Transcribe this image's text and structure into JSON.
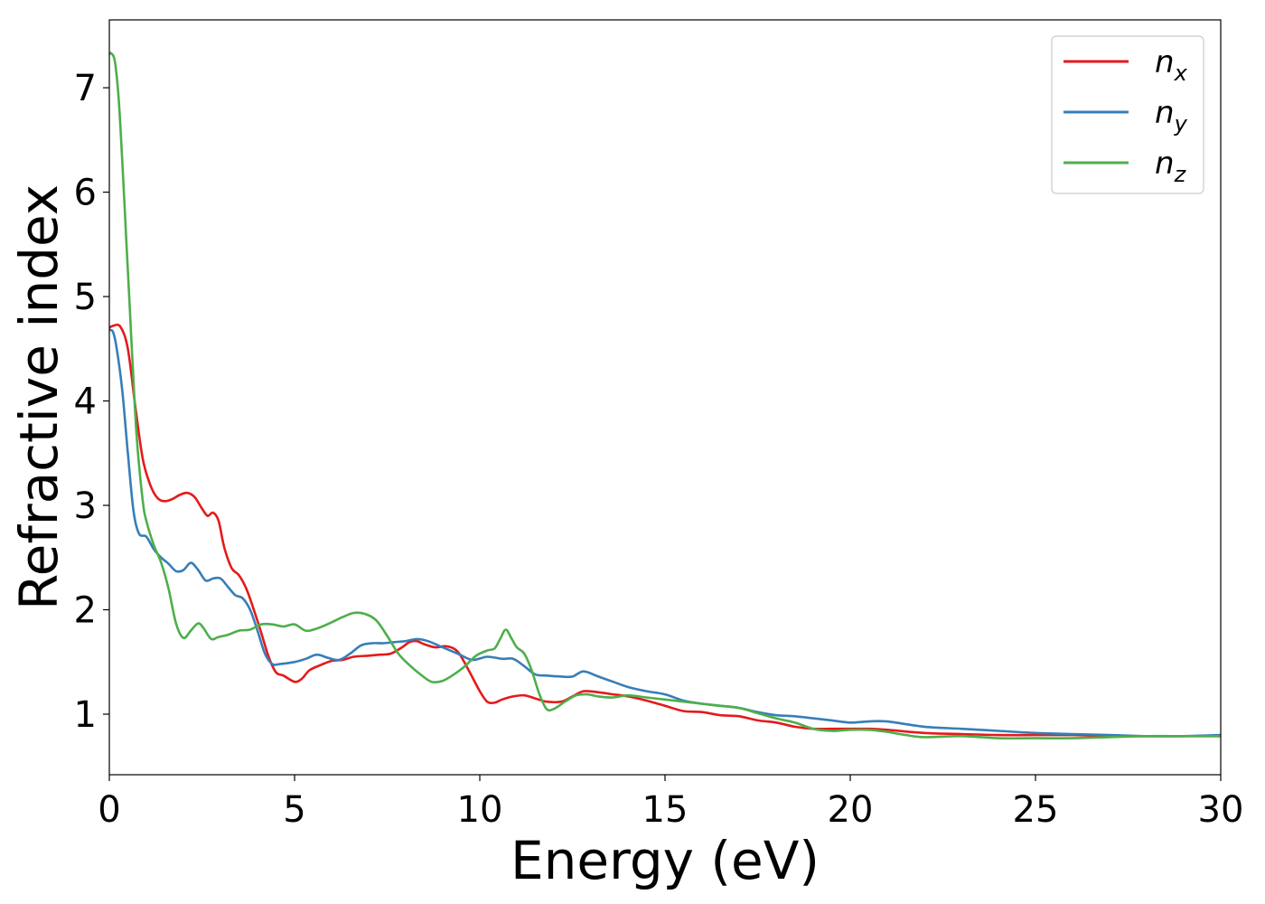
{
  "chart_data": {
    "type": "line",
    "title": "",
    "xlabel": "Energy (eV)",
    "ylabel": "Refractive index",
    "xlim": [
      0,
      30
    ],
    "ylim": [
      0.42,
      7.65
    ],
    "xticks": [
      0,
      5,
      10,
      15,
      20,
      25,
      30
    ],
    "xtick_labels": [
      "0",
      "5",
      "10",
      "15",
      "20",
      "25",
      "30"
    ],
    "yticks": [
      1,
      2,
      3,
      4,
      5,
      6,
      7
    ],
    "ytick_labels": [
      "1",
      "2",
      "3",
      "4",
      "5",
      "6",
      "7"
    ],
    "grid": false,
    "legend_position": "top-right",
    "series": [
      {
        "name": "n_x",
        "label_main": "n",
        "label_sub": "x",
        "color": "#e41a1c",
        "x": [
          0,
          0.1,
          0.3,
          0.5,
          0.7,
          0.9,
          1.1,
          1.3,
          1.5,
          1.7,
          1.9,
          2.1,
          2.3,
          2.5,
          2.65,
          2.8,
          2.95,
          3.1,
          3.3,
          3.5,
          3.7,
          3.9,
          4.1,
          4.3,
          4.5,
          4.7,
          5.0,
          5.2,
          5.4,
          5.7,
          6.0,
          6.3,
          6.6,
          7.0,
          7.3,
          7.6,
          7.9,
          8.1,
          8.3,
          8.5,
          8.8,
          9.1,
          9.4,
          9.7,
          10.0,
          10.2,
          10.4,
          10.6,
          10.9,
          11.2,
          11.5,
          11.8,
          12.2,
          12.5,
          12.8,
          13.2,
          13.6,
          14.0,
          14.5,
          15.0,
          15.5,
          16.0,
          16.5,
          17.0,
          17.5,
          18.0,
          18.5,
          19.0,
          19.5,
          20.0,
          20.5,
          21.0,
          22.0,
          23.0,
          24.0,
          25.0,
          26.0,
          27.0,
          28.0,
          29.0,
          30.0
        ],
        "y": [
          4.7,
          4.72,
          4.71,
          4.5,
          3.95,
          3.45,
          3.2,
          3.07,
          3.04,
          3.06,
          3.1,
          3.12,
          3.08,
          2.97,
          2.9,
          2.93,
          2.85,
          2.6,
          2.4,
          2.33,
          2.2,
          2.0,
          1.78,
          1.55,
          1.4,
          1.37,
          1.31,
          1.34,
          1.42,
          1.47,
          1.51,
          1.52,
          1.55,
          1.56,
          1.57,
          1.58,
          1.64,
          1.69,
          1.7,
          1.67,
          1.64,
          1.65,
          1.6,
          1.42,
          1.22,
          1.12,
          1.11,
          1.14,
          1.17,
          1.18,
          1.15,
          1.12,
          1.12,
          1.17,
          1.22,
          1.21,
          1.19,
          1.17,
          1.13,
          1.08,
          1.03,
          1.02,
          0.99,
          0.98,
          0.94,
          0.92,
          0.88,
          0.86,
          0.86,
          0.86,
          0.86,
          0.85,
          0.82,
          0.81,
          0.8,
          0.8,
          0.8,
          0.79,
          0.79,
          0.79,
          0.79
        ]
      },
      {
        "name": "n_y",
        "label_main": "n",
        "label_sub": "y",
        "color": "#377eb8",
        "x": [
          0,
          0.1,
          0.2,
          0.35,
          0.5,
          0.65,
          0.8,
          1.0,
          1.2,
          1.4,
          1.6,
          1.8,
          2.0,
          2.2,
          2.4,
          2.6,
          2.8,
          3.0,
          3.2,
          3.4,
          3.6,
          3.8,
          4.0,
          4.2,
          4.4,
          4.6,
          5.0,
          5.3,
          5.6,
          5.9,
          6.2,
          6.5,
          6.8,
          7.1,
          7.4,
          7.7,
          8.0,
          8.3,
          8.6,
          9.0,
          9.4,
          9.8,
          10.2,
          10.6,
          10.9,
          11.2,
          11.5,
          11.8,
          12.2,
          12.5,
          12.8,
          13.2,
          13.6,
          14.0,
          14.5,
          15.0,
          15.5,
          16.0,
          16.5,
          17.0,
          17.5,
          18.0,
          18.5,
          19.0,
          19.5,
          20.0,
          20.5,
          21.0,
          22.0,
          23.0,
          24.0,
          25.0,
          26.0,
          27.0,
          28.0,
          29.0,
          30.0
        ],
        "y": [
          4.68,
          4.66,
          4.5,
          4.1,
          3.5,
          2.95,
          2.73,
          2.7,
          2.58,
          2.5,
          2.44,
          2.37,
          2.38,
          2.45,
          2.38,
          2.28,
          2.3,
          2.3,
          2.22,
          2.14,
          2.11,
          2.0,
          1.8,
          1.58,
          1.48,
          1.48,
          1.5,
          1.53,
          1.57,
          1.54,
          1.52,
          1.58,
          1.66,
          1.68,
          1.68,
          1.69,
          1.7,
          1.72,
          1.7,
          1.64,
          1.58,
          1.52,
          1.55,
          1.53,
          1.53,
          1.46,
          1.38,
          1.37,
          1.36,
          1.36,
          1.41,
          1.36,
          1.31,
          1.26,
          1.22,
          1.19,
          1.13,
          1.1,
          1.08,
          1.06,
          1.02,
          0.99,
          0.98,
          0.96,
          0.94,
          0.92,
          0.93,
          0.93,
          0.88,
          0.86,
          0.84,
          0.82,
          0.81,
          0.8,
          0.79,
          0.79,
          0.8
        ]
      },
      {
        "name": "n_z",
        "label_main": "n",
        "label_sub": "z",
        "color": "#4daf4a",
        "x": [
          0,
          0.05,
          0.15,
          0.25,
          0.35,
          0.45,
          0.55,
          0.65,
          0.75,
          0.9,
          1.0,
          1.2,
          1.4,
          1.6,
          1.8,
          2.0,
          2.2,
          2.4,
          2.55,
          2.75,
          2.95,
          3.2,
          3.5,
          3.8,
          4.1,
          4.4,
          4.7,
          5.0,
          5.3,
          5.6,
          6.0,
          6.3,
          6.6,
          6.9,
          7.2,
          7.5,
          7.8,
          8.1,
          8.4,
          8.7,
          9.0,
          9.3,
          9.6,
          9.9,
          10.2,
          10.4,
          10.55,
          10.7,
          10.85,
          11.0,
          11.2,
          11.4,
          11.6,
          11.8,
          12.0,
          12.3,
          12.6,
          12.9,
          13.2,
          13.6,
          14.0,
          14.5,
          15.0,
          15.5,
          16.0,
          16.5,
          17.0,
          17.5,
          18.0,
          18.5,
          19.0,
          19.5,
          20.0,
          20.5,
          21.0,
          21.5,
          22.0,
          23.0,
          24.0,
          25.0,
          26.0,
          27.0,
          28.0,
          29.0,
          30.0
        ],
        "y": [
          7.32,
          7.33,
          7.25,
          6.9,
          6.3,
          5.6,
          4.9,
          4.2,
          3.6,
          3.05,
          2.85,
          2.62,
          2.45,
          2.2,
          1.87,
          1.73,
          1.8,
          1.87,
          1.82,
          1.72,
          1.74,
          1.76,
          1.8,
          1.81,
          1.86,
          1.86,
          1.84,
          1.86,
          1.8,
          1.82,
          1.88,
          1.93,
          1.97,
          1.96,
          1.9,
          1.75,
          1.58,
          1.47,
          1.38,
          1.31,
          1.32,
          1.38,
          1.46,
          1.56,
          1.61,
          1.63,
          1.72,
          1.81,
          1.73,
          1.64,
          1.58,
          1.42,
          1.2,
          1.05,
          1.05,
          1.12,
          1.18,
          1.19,
          1.17,
          1.16,
          1.18,
          1.16,
          1.14,
          1.12,
          1.1,
          1.08,
          1.06,
          1.01,
          0.96,
          0.92,
          0.86,
          0.84,
          0.85,
          0.85,
          0.83,
          0.8,
          0.78,
          0.79,
          0.77,
          0.77,
          0.77,
          0.78,
          0.79,
          0.79,
          0.79
        ]
      }
    ]
  }
}
